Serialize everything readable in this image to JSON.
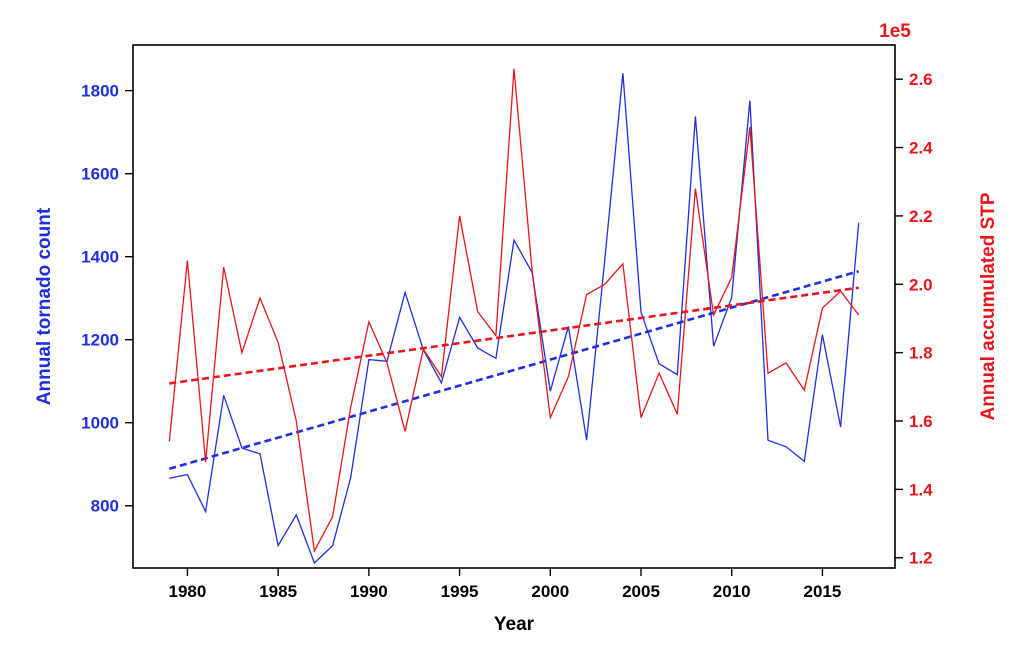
{
  "chart_data": {
    "type": "line",
    "xlabel": "Year",
    "ylabel_left": "Annual tornado count",
    "ylabel_right": "Annual accumulated STP",
    "right_axis_multiplier": "1e5",
    "xlim": [
      1977,
      2019
    ],
    "ylim_left": [
      650,
      1910
    ],
    "ylim_right": [
      1.17,
      2.7
    ],
    "x_ticks": [
      1980,
      1985,
      1990,
      1995,
      2000,
      2005,
      2010,
      2015
    ],
    "y_ticks_left": [
      800,
      1000,
      1200,
      1400,
      1600,
      1800
    ],
    "y_ticks_right": [
      1.2,
      1.4,
      1.6,
      1.8,
      2.0,
      2.2,
      2.4,
      2.6
    ],
    "grid": false,
    "colors": {
      "left": "#1f2fe0",
      "right": "#e8161b",
      "axis": "#000000"
    },
    "x": [
      1979,
      1980,
      1981,
      1982,
      1983,
      1984,
      1985,
      1986,
      1987,
      1988,
      1989,
      1990,
      1991,
      1992,
      1993,
      1994,
      1995,
      1996,
      1997,
      1998,
      1999,
      2000,
      2001,
      2002,
      2003,
      2004,
      2005,
      2006,
      2007,
      2008,
      2009,
      2010,
      2011,
      2012,
      2013,
      2014,
      2015,
      2016,
      2017
    ],
    "series": [
      {
        "axis": "left",
        "values": [
          866,
          875,
          786,
          1066,
          939,
          925,
          704,
          778,
          662,
          704,
          868,
          1152,
          1148,
          1314,
          1176,
          1096,
          1254,
          1180,
          1155,
          1440,
          1362,
          1076,
          1232,
          958,
          1390,
          1842,
          1266,
          1142,
          1116,
          1738,
          1184,
          1302,
          1776,
          958,
          942,
          907,
          1212,
          990,
          1482
        ],
        "trend": [
          889,
          1365
        ]
      },
      {
        "axis": "right",
        "values": [
          1.54,
          2.07,
          1.48,
          2.05,
          1.8,
          1.96,
          1.83,
          1.6,
          1.22,
          1.32,
          1.64,
          1.89,
          1.77,
          1.57,
          1.81,
          1.73,
          2.2,
          1.92,
          1.85,
          2.63,
          2.04,
          1.61,
          1.73,
          1.97,
          2.0,
          2.06,
          1.61,
          1.74,
          1.62,
          2.28,
          1.91,
          2.02,
          2.46,
          1.74,
          1.77,
          1.69,
          1.93,
          1.98,
          1.91
        ],
        "trend": [
          1.71,
          1.99
        ]
      }
    ]
  }
}
